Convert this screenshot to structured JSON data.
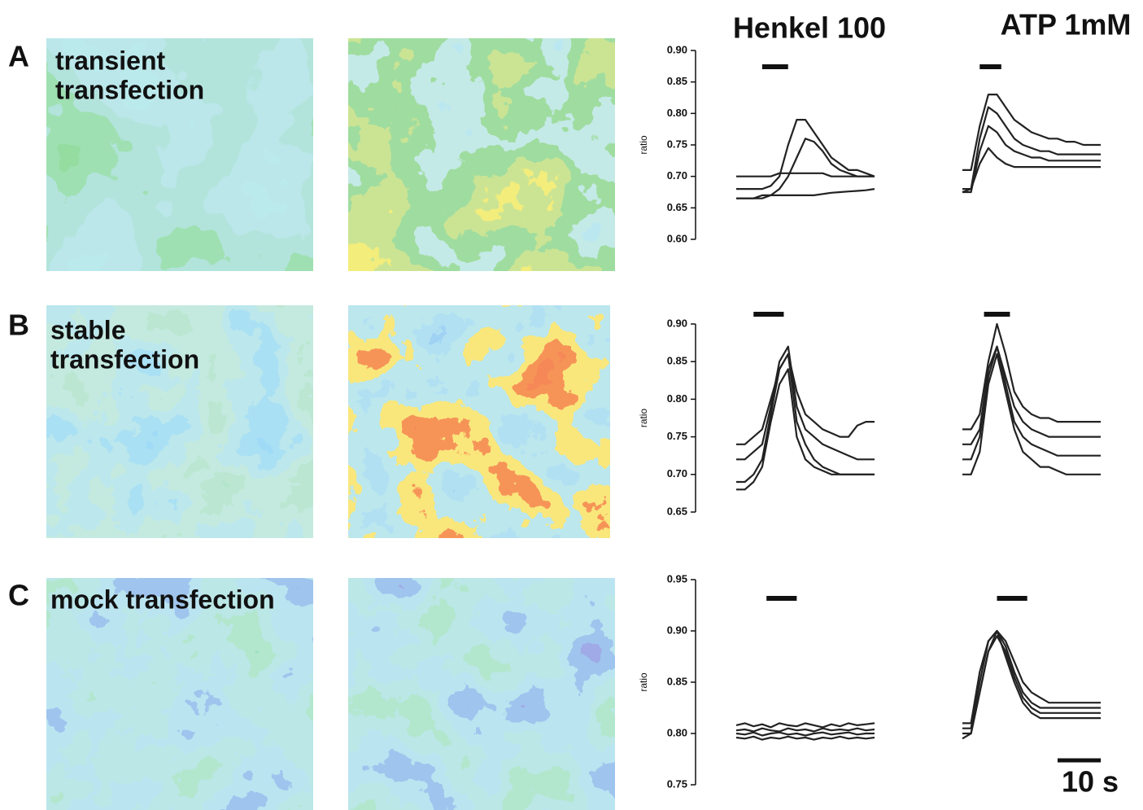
{
  "column_titles": [
    "Henkel 100",
    "ATP 1mM"
  ],
  "panels": [
    {
      "letter": "A",
      "caption": [
        "transient",
        "transfection"
      ]
    },
    {
      "letter": "B",
      "caption": [
        "stable",
        "transfection"
      ]
    },
    {
      "letter": "C",
      "caption": [
        "mock transfection"
      ]
    }
  ],
  "scale_bar": {
    "value": 10,
    "label": "10 s"
  },
  "chart_data": [
    {
      "type": "line",
      "title": "Henkel 100",
      "ylabel": "ratio",
      "stimulus": [
        6,
        12
      ],
      "x": [
        0,
        2,
        4,
        6,
        8,
        10,
        12,
        14,
        16,
        18,
        20,
        22,
        24,
        26,
        28,
        30,
        32
      ],
      "xlim": [
        0,
        32
      ],
      "ylim": [
        0.6,
        0.9
      ],
      "yticks": [
        {
          "value": 0.6,
          "label": "0.60"
        },
        {
          "value": 0.65,
          "label": "0.65"
        },
        {
          "value": 0.7,
          "label": "0.70"
        },
        {
          "value": 0.75,
          "label": "0.75"
        },
        {
          "value": 0.8,
          "label": "0.80"
        },
        {
          "value": 0.85,
          "label": "0.85"
        },
        {
          "value": 0.9,
          "label": "0.90"
        }
      ],
      "series": [
        {
          "color": "#222",
          "values": [
            0.7,
            0.7,
            0.7,
            0.7,
            0.7,
            0.705,
            0.705,
            0.705,
            0.705,
            0.705,
            0.705,
            0.7,
            0.7,
            0.7,
            0.7,
            0.7,
            0.7
          ]
        },
        {
          "color": "#222",
          "values": [
            0.68,
            0.68,
            0.68,
            0.68,
            0.685,
            0.7,
            0.75,
            0.79,
            0.79,
            0.77,
            0.75,
            0.73,
            0.72,
            0.71,
            0.71,
            0.705,
            0.7
          ]
        },
        {
          "color": "#222",
          "values": [
            0.665,
            0.665,
            0.665,
            0.665,
            0.67,
            0.68,
            0.7,
            0.73,
            0.76,
            0.755,
            0.74,
            0.72,
            0.71,
            0.705,
            0.7,
            0.7,
            0.7
          ]
        },
        {
          "color": "#222",
          "values": [
            0.665,
            0.665,
            0.665,
            0.67,
            0.67,
            0.67,
            0.67,
            0.67,
            0.67,
            0.67,
            0.672,
            0.674,
            0.675,
            0.676,
            0.677,
            0.678,
            0.68
          ]
        }
      ]
    },
    {
      "type": "line",
      "title": "ATP 1mM",
      "stimulus": [
        4,
        9
      ],
      "x": [
        0,
        2,
        4,
        6,
        8,
        10,
        12,
        14,
        16,
        18,
        20,
        22,
        24,
        26,
        28,
        30,
        32
      ],
      "xlim": [
        0,
        32
      ],
      "ylim": [
        0.6,
        0.9
      ],
      "series": [
        {
          "color": "#222",
          "values": [
            0.71,
            0.71,
            0.78,
            0.83,
            0.83,
            0.81,
            0.79,
            0.78,
            0.77,
            0.765,
            0.76,
            0.76,
            0.755,
            0.755,
            0.75,
            0.75,
            0.75
          ]
        },
        {
          "color": "#222",
          "values": [
            0.68,
            0.68,
            0.76,
            0.81,
            0.8,
            0.78,
            0.76,
            0.75,
            0.745,
            0.74,
            0.74,
            0.735,
            0.735,
            0.735,
            0.735,
            0.735,
            0.735
          ]
        },
        {
          "color": "#222",
          "values": [
            0.675,
            0.675,
            0.74,
            0.78,
            0.77,
            0.75,
            0.74,
            0.735,
            0.73,
            0.73,
            0.725,
            0.725,
            0.725,
            0.725,
            0.725,
            0.725,
            0.725
          ]
        },
        {
          "color": "#222",
          "values": [
            0.675,
            0.68,
            0.72,
            0.745,
            0.73,
            0.72,
            0.715,
            0.715,
            0.715,
            0.715,
            0.715,
            0.715,
            0.715,
            0.715,
            0.715,
            0.715,
            0.715
          ]
        }
      ]
    },
    {
      "type": "line",
      "ylabel": "ratio",
      "stimulus": [
        4,
        11
      ],
      "x": [
        0,
        2,
        4,
        6,
        8,
        10,
        12,
        14,
        16,
        18,
        20,
        22,
        24,
        26,
        28,
        30,
        32
      ],
      "xlim": [
        0,
        32
      ],
      "ylim": [
        0.65,
        0.9
      ],
      "yticks": [
        {
          "value": 0.65,
          "label": "0.65"
        },
        {
          "value": 0.7,
          "label": "0.70"
        },
        {
          "value": 0.75,
          "label": "0.75"
        },
        {
          "value": 0.8,
          "label": "0.80"
        },
        {
          "value": 0.85,
          "label": "0.85"
        },
        {
          "value": 0.9,
          "label": "0.90"
        }
      ],
      "series": [
        {
          "color": "#222",
          "values": [
            0.74,
            0.74,
            0.75,
            0.76,
            0.8,
            0.84,
            0.86,
            0.81,
            0.78,
            0.77,
            0.76,
            0.755,
            0.75,
            0.75,
            0.765,
            0.77,
            0.77
          ]
        },
        {
          "color": "#222",
          "values": [
            0.72,
            0.72,
            0.73,
            0.74,
            0.79,
            0.85,
            0.87,
            0.79,
            0.76,
            0.75,
            0.74,
            0.735,
            0.73,
            0.725,
            0.72,
            0.72,
            0.72
          ]
        },
        {
          "color": "#222",
          "values": [
            0.69,
            0.69,
            0.7,
            0.72,
            0.78,
            0.84,
            0.86,
            0.77,
            0.74,
            0.72,
            0.71,
            0.705,
            0.7,
            0.7,
            0.7,
            0.7,
            0.7
          ]
        },
        {
          "color": "#222",
          "values": [
            0.68,
            0.68,
            0.69,
            0.71,
            0.77,
            0.82,
            0.84,
            0.75,
            0.72,
            0.71,
            0.705,
            0.7,
            0.7,
            0.7,
            0.7,
            0.7,
            0.7
          ]
        }
      ]
    },
    {
      "type": "line",
      "stimulus": [
        5,
        11
      ],
      "x": [
        0,
        2,
        4,
        6,
        8,
        10,
        12,
        14,
        16,
        18,
        20,
        22,
        24,
        26,
        28,
        30,
        32
      ],
      "xlim": [
        0,
        32
      ],
      "ylim": [
        0.65,
        0.9
      ],
      "series": [
        {
          "color": "#222",
          "values": [
            0.76,
            0.76,
            0.78,
            0.85,
            0.9,
            0.86,
            0.81,
            0.79,
            0.78,
            0.775,
            0.775,
            0.77,
            0.77,
            0.77,
            0.77,
            0.77,
            0.77
          ]
        },
        {
          "color": "#222",
          "values": [
            0.74,
            0.74,
            0.76,
            0.84,
            0.87,
            0.83,
            0.79,
            0.77,
            0.76,
            0.755,
            0.75,
            0.75,
            0.75,
            0.75,
            0.75,
            0.75,
            0.75
          ]
        },
        {
          "color": "#222",
          "values": [
            0.72,
            0.72,
            0.75,
            0.83,
            0.87,
            0.82,
            0.77,
            0.75,
            0.74,
            0.735,
            0.73,
            0.725,
            0.725,
            0.725,
            0.725,
            0.725,
            0.725
          ]
        },
        {
          "color": "#222",
          "values": [
            0.7,
            0.7,
            0.73,
            0.82,
            0.86,
            0.81,
            0.76,
            0.73,
            0.72,
            0.71,
            0.71,
            0.705,
            0.7,
            0.7,
            0.7,
            0.7,
            0.7
          ]
        }
      ]
    },
    {
      "type": "line",
      "ylabel": "ratio",
      "stimulus": [
        7,
        14
      ],
      "x": [
        0,
        2,
        4,
        6,
        8,
        10,
        12,
        14,
        16,
        18,
        20,
        22,
        24,
        26,
        28,
        30,
        32
      ],
      "xlim": [
        0,
        32
      ],
      "ylim": [
        0.75,
        0.95
      ],
      "yticks": [
        {
          "value": 0.75,
          "label": "0.75"
        },
        {
          "value": 0.8,
          "label": "0.80"
        },
        {
          "value": 0.85,
          "label": "0.85"
        },
        {
          "value": 0.9,
          "label": "0.90"
        },
        {
          "value": 0.95,
          "label": "0.95"
        }
      ],
      "series": [
        {
          "color": "#222",
          "values": [
            0.808,
            0.81,
            0.807,
            0.809,
            0.806,
            0.81,
            0.808,
            0.807,
            0.81,
            0.808,
            0.806,
            0.809,
            0.807,
            0.81,
            0.808,
            0.809,
            0.81
          ]
        },
        {
          "color": "#222",
          "values": [
            0.803,
            0.804,
            0.802,
            0.805,
            0.803,
            0.802,
            0.805,
            0.803,
            0.804,
            0.802,
            0.805,
            0.803,
            0.804,
            0.803,
            0.805,
            0.803,
            0.804
          ]
        },
        {
          "color": "#222",
          "values": [
            0.8,
            0.799,
            0.801,
            0.798,
            0.8,
            0.801,
            0.799,
            0.8,
            0.798,
            0.8,
            0.801,
            0.799,
            0.8,
            0.801,
            0.799,
            0.8,
            0.8
          ]
        },
        {
          "color": "#222",
          "values": [
            0.796,
            0.795,
            0.797,
            0.794,
            0.796,
            0.795,
            0.797,
            0.795,
            0.796,
            0.794,
            0.796,
            0.795,
            0.797,
            0.795,
            0.796,
            0.795,
            0.796
          ]
        }
      ]
    },
    {
      "type": "line",
      "stimulus": [
        8,
        15
      ],
      "x": [
        0,
        2,
        4,
        6,
        8,
        10,
        12,
        14,
        16,
        18,
        20,
        22,
        24,
        26,
        28,
        30,
        32
      ],
      "xlim": [
        0,
        32
      ],
      "ylim": [
        0.75,
        0.95
      ],
      "series": [
        {
          "color": "#222",
          "values": [
            0.81,
            0.81,
            0.86,
            0.89,
            0.9,
            0.89,
            0.87,
            0.85,
            0.84,
            0.835,
            0.83,
            0.83,
            0.83,
            0.83,
            0.83,
            0.83,
            0.83
          ]
        },
        {
          "color": "#222",
          "values": [
            0.805,
            0.805,
            0.85,
            0.89,
            0.9,
            0.885,
            0.86,
            0.84,
            0.83,
            0.825,
            0.825,
            0.825,
            0.825,
            0.825,
            0.825,
            0.825,
            0.825
          ]
        },
        {
          "color": "#222",
          "values": [
            0.8,
            0.8,
            0.84,
            0.88,
            0.895,
            0.88,
            0.855,
            0.835,
            0.825,
            0.82,
            0.82,
            0.82,
            0.82,
            0.82,
            0.82,
            0.82,
            0.82
          ]
        },
        {
          "color": "#222",
          "values": [
            0.795,
            0.8,
            0.84,
            0.88,
            0.9,
            0.875,
            0.85,
            0.83,
            0.82,
            0.815,
            0.815,
            0.815,
            0.815,
            0.815,
            0.815,
            0.815,
            0.815
          ]
        }
      ]
    }
  ]
}
